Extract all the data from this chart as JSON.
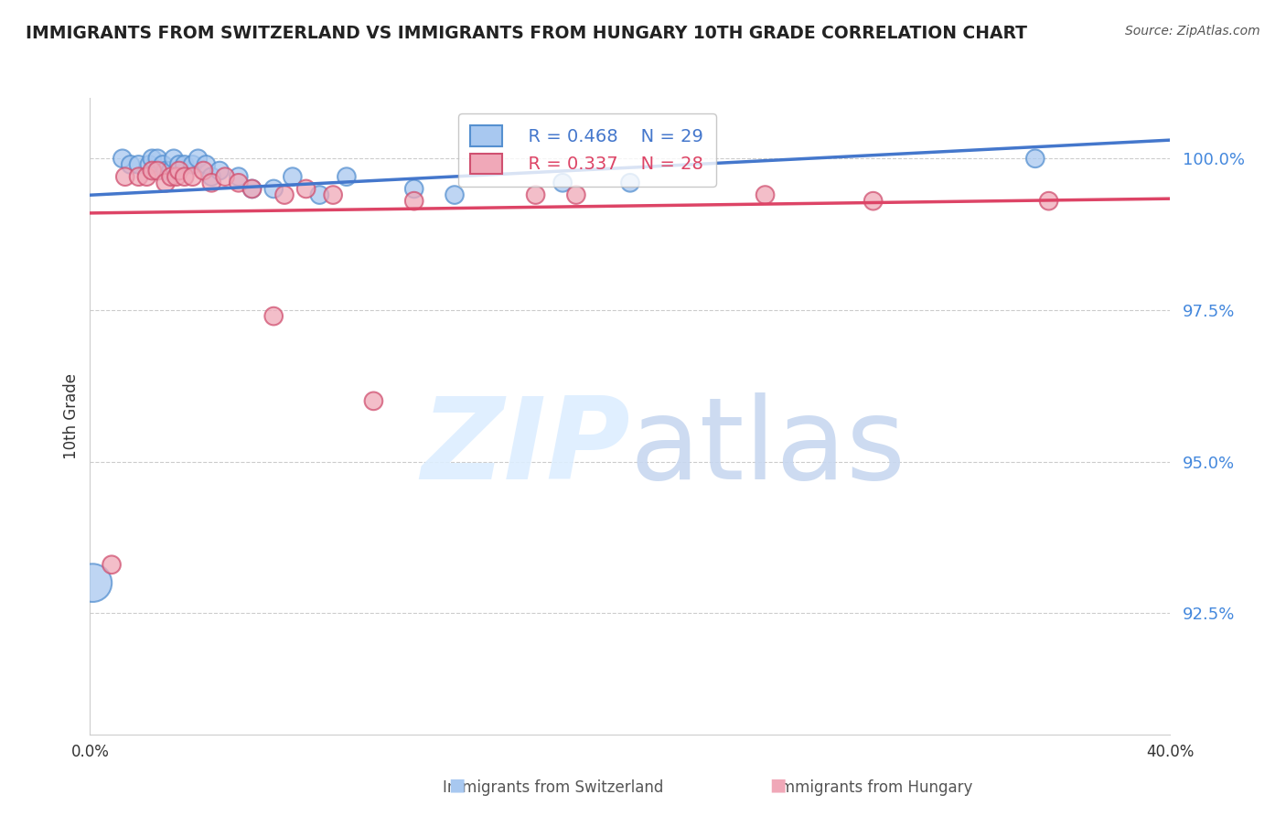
{
  "title": "IMMIGRANTS FROM SWITZERLAND VS IMMIGRANTS FROM HUNGARY 10TH GRADE CORRELATION CHART",
  "source_text": "Source: ZipAtlas.com",
  "ylabel": "10th Grade",
  "ytick_labels": [
    "100.0%",
    "97.5%",
    "95.0%",
    "92.5%"
  ],
  "ytick_values": [
    1.0,
    0.975,
    0.95,
    0.925
  ],
  "xlim": [
    0.0,
    0.4
  ],
  "ylim": [
    0.905,
    1.01
  ],
  "legend_r1": "R = 0.468",
  "legend_n1": "N = 29",
  "legend_r2": "R = 0.337",
  "legend_n2": "N = 28",
  "color_swiss_face": "#A8C8F0",
  "color_swiss_edge": "#5590D0",
  "color_hungary_face": "#F0A8B8",
  "color_hungary_edge": "#D05070",
  "color_swiss_line": "#4477CC",
  "color_hungary_line": "#DD4466",
  "color_grid": "#CCCCCC",
  "watermark_color": "#DDEEFF",
  "swiss_x": [
    0.001,
    0.012,
    0.015,
    0.018,
    0.022,
    0.023,
    0.025,
    0.027,
    0.028,
    0.03,
    0.031,
    0.033,
    0.035,
    0.038,
    0.04,
    0.043,
    0.045,
    0.048,
    0.055,
    0.06,
    0.068,
    0.075,
    0.085,
    0.095,
    0.12,
    0.135,
    0.175,
    0.2,
    0.35
  ],
  "swiss_y": [
    0.93,
    1.0,
    0.999,
    0.999,
    0.999,
    1.0,
    1.0,
    0.999,
    0.998,
    0.998,
    1.0,
    0.999,
    0.999,
    0.999,
    1.0,
    0.999,
    0.997,
    0.998,
    0.997,
    0.995,
    0.995,
    0.997,
    0.994,
    0.997,
    0.995,
    0.994,
    0.996,
    0.996,
    1.0
  ],
  "hungary_x": [
    0.008,
    0.013,
    0.018,
    0.021,
    0.023,
    0.025,
    0.028,
    0.03,
    0.032,
    0.033,
    0.035,
    0.038,
    0.042,
    0.045,
    0.05,
    0.055,
    0.06,
    0.068,
    0.072,
    0.08,
    0.09,
    0.105,
    0.12,
    0.165,
    0.18,
    0.25,
    0.29,
    0.355
  ],
  "hungary_y": [
    0.933,
    0.997,
    0.997,
    0.997,
    0.998,
    0.998,
    0.996,
    0.997,
    0.997,
    0.998,
    0.997,
    0.997,
    0.998,
    0.996,
    0.997,
    0.996,
    0.995,
    0.974,
    0.994,
    0.995,
    0.994,
    0.96,
    0.993,
    0.994,
    0.994,
    0.994,
    0.993,
    0.993
  ],
  "swiss_sizes": [
    900,
    200,
    200,
    200,
    200,
    200,
    200,
    200,
    200,
    200,
    200,
    200,
    200,
    200,
    200,
    200,
    200,
    200,
    200,
    200,
    200,
    200,
    200,
    200,
    200,
    200,
    200,
    200,
    200
  ],
  "hungary_sizes": [
    200,
    200,
    200,
    200,
    200,
    200,
    200,
    200,
    200,
    200,
    200,
    200,
    200,
    200,
    200,
    200,
    200,
    200,
    200,
    200,
    200,
    200,
    200,
    200,
    200,
    200,
    200,
    200
  ]
}
